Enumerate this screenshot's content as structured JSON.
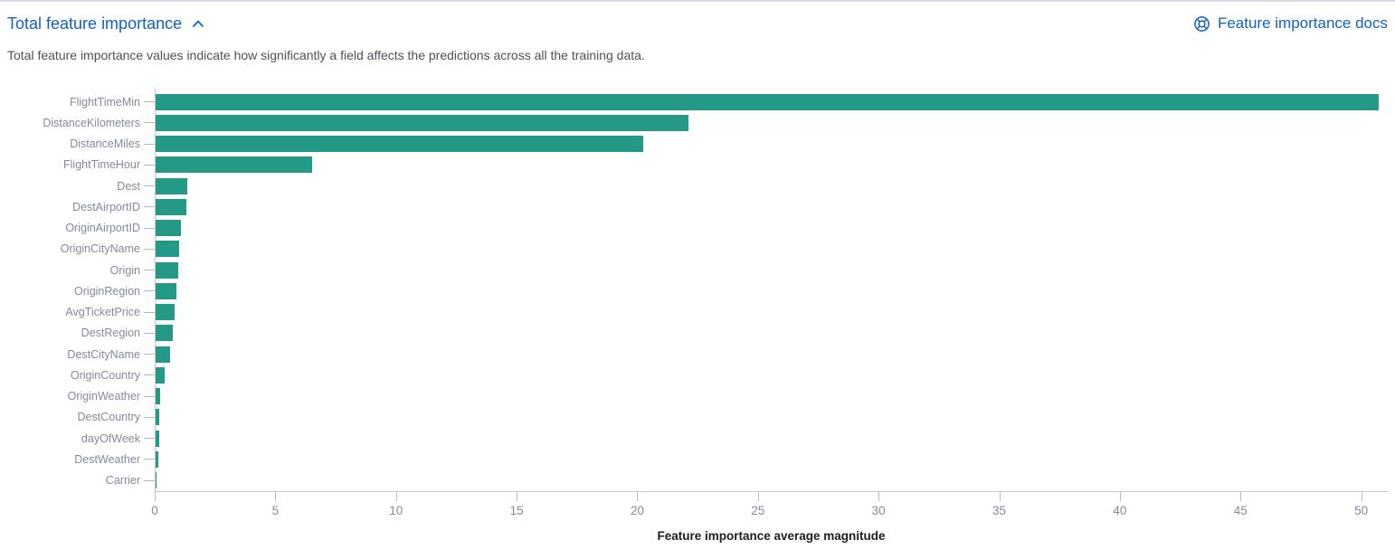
{
  "header": {
    "title": "Total feature importance",
    "collapse_icon": "chevron-up-icon",
    "docs_link": {
      "label": "Feature importance docs",
      "icon": "lifebuoy-icon"
    }
  },
  "subtitle": "Total feature importance values indicate how significantly a field affects the predictions across all the training data.",
  "colors": {
    "accent_blue": "#0f62c6",
    "bar_teal": "#239986",
    "axis_line": "#c3c7d6",
    "tick_label_text": "#848a9d"
  },
  "chart_data": {
    "type": "bar",
    "orientation": "horizontal",
    "title": "",
    "xlabel": "Feature importance average magnitude",
    "ylabel": "",
    "categories": [
      "FlightTimeMin",
      "DistanceKilometers",
      "DistanceMiles",
      "FlightTimeHour",
      "Dest",
      "DestAirportID",
      "OriginAirportID",
      "OriginCityName",
      "Origin",
      "OriginRegion",
      "AvgTicketPrice",
      "DestRegion",
      "DestCityName",
      "OriginCountry",
      "OriginWeather",
      "DestCountry",
      "dayOfWeek",
      "DestWeather",
      "Carrier"
    ],
    "values": [
      50.7,
      22.1,
      20.2,
      6.5,
      1.3,
      1.27,
      1.05,
      0.97,
      0.93,
      0.86,
      0.79,
      0.7,
      0.6,
      0.38,
      0.19,
      0.15,
      0.15,
      0.11,
      0.02
    ],
    "xticks": [
      0,
      5,
      10,
      15,
      20,
      25,
      30,
      35,
      40,
      45,
      50
    ],
    "xlim": [
      0,
      51.1
    ],
    "grid": false,
    "legend": false
  }
}
